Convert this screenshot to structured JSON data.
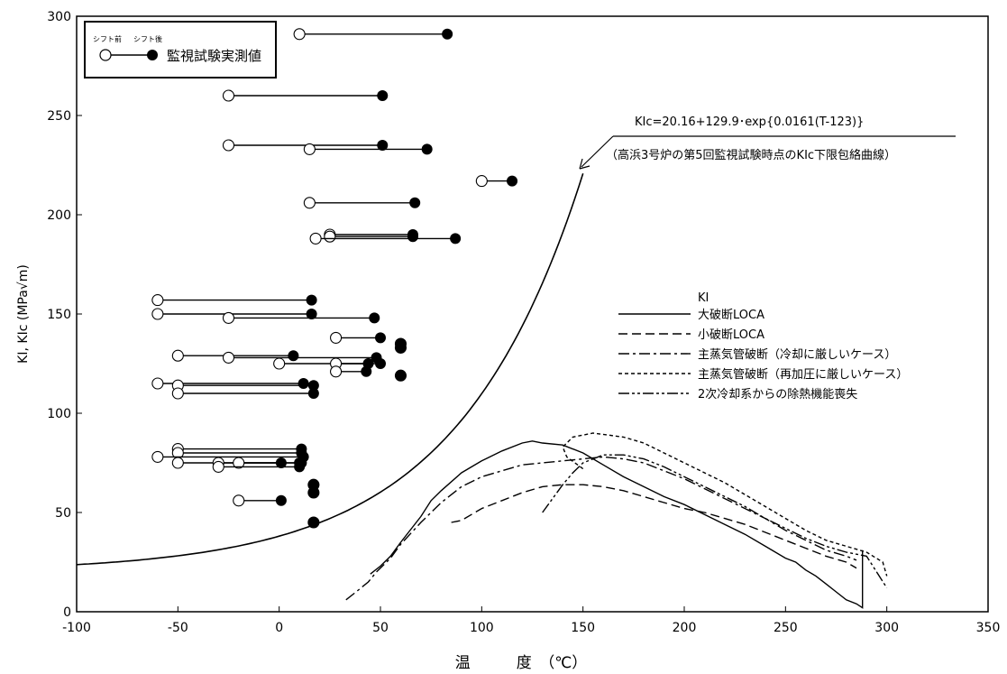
{
  "chart_data": {
    "type": "line",
    "title": "",
    "xlabel": "温　　　度　（℃）",
    "ylabel": "KI, KIc (MPa√m)",
    "xlim": [
      -100,
      350
    ],
    "ylim": [
      0,
      300
    ],
    "x_ticks": [
      -100,
      -50,
      0,
      50,
      100,
      150,
      200,
      250,
      300,
      350
    ],
    "y_ticks": [
      0,
      50,
      100,
      150,
      200,
      250,
      300
    ],
    "x_tick_labels": [
      "-100",
      "-50",
      "0",
      "50",
      "100",
      "150",
      "200",
      "250",
      "300",
      "350"
    ],
    "y_tick_labels": [
      "0",
      "50",
      "100",
      "150",
      "200",
      "250",
      "300"
    ],
    "grid": false,
    "marker_legend": {
      "before_label": "シフト前",
      "after_label": "シフト後",
      "label": "監視試験実測値",
      "placement": "top-left"
    },
    "kic_annotation": {
      "formula": "KIc=20.16+129.9･exp{0.0161(T-123)}",
      "note": "（高浜3号炉の第5回監視試験時点のKIc下限包絡曲線）"
    },
    "ki_legend": {
      "title": "KI",
      "placement": "right"
    },
    "kic_curve": {
      "coef_a": 20.16,
      "coef_b": 129.9,
      "coef_c": 0.0161,
      "coef_t0": 123,
      "x_range": [
        -100,
        150
      ]
    },
    "measurements": [
      {
        "before": 10,
        "after": 83,
        "k": 291
      },
      {
        "before": -25,
        "after": 51,
        "k": 260
      },
      {
        "before": -25,
        "after": 51,
        "k": 235
      },
      {
        "before": 15,
        "after": 73,
        "k": 233
      },
      {
        "before": 100,
        "after": 115,
        "k": 217
      },
      {
        "before": 15,
        "after": 67,
        "k": 206
      },
      {
        "before": 25,
        "after": 66,
        "k": 190
      },
      {
        "before": 25,
        "after": 66,
        "k": 189
      },
      {
        "before": 18,
        "after": 87,
        "k": 188
      },
      {
        "before": -60,
        "after": 16,
        "k": 157
      },
      {
        "before": -60,
        "after": 16,
        "k": 150
      },
      {
        "before": -25,
        "after": 47,
        "k": 148
      },
      {
        "before": 28,
        "after": 50,
        "k": 138
      },
      {
        "before": 60,
        "after": 60,
        "k": 135
      },
      {
        "before": 60,
        "after": 60,
        "k": 133
      },
      {
        "before": -50,
        "after": 7,
        "k": 129
      },
      {
        "before": -25,
        "after": 48,
        "k": 128
      },
      {
        "before": 0,
        "after": 50,
        "k": 125
      },
      {
        "before": 28,
        "after": 44,
        "k": 125
      },
      {
        "before": 28,
        "after": 43,
        "k": 121
      },
      {
        "before": 60,
        "after": 60,
        "k": 119
      },
      {
        "before": -60,
        "after": 12,
        "k": 115
      },
      {
        "before": -50,
        "after": 17,
        "k": 114
      },
      {
        "before": -50,
        "after": 17,
        "k": 110
      },
      {
        "before": -50,
        "after": 11,
        "k": 82
      },
      {
        "before": -50,
        "after": 11,
        "k": 80
      },
      {
        "before": -60,
        "after": 12,
        "k": 78
      },
      {
        "before": -50,
        "after": 1,
        "k": 75
      },
      {
        "before": -30,
        "after": 10,
        "k": 75
      },
      {
        "before": -20,
        "after": 11,
        "k": 75
      },
      {
        "before": -30,
        "after": 10,
        "k": 73
      },
      {
        "before": 17,
        "after": 17,
        "k": 64
      },
      {
        "before": 17,
        "after": 17,
        "k": 60
      },
      {
        "before": -20,
        "after": 1,
        "k": 56
      },
      {
        "before": 17,
        "after": 17,
        "k": 45
      }
    ],
    "series": [
      {
        "name": "大破断LOCA",
        "style": "solid",
        "x": [
          45,
          50,
          55,
          60,
          70,
          75,
          80,
          90,
          100,
          110,
          120,
          125,
          130,
          140,
          150,
          160,
          170,
          180,
          190,
          200,
          210,
          220,
          230,
          240,
          250,
          255,
          260,
          265,
          270,
          275,
          280,
          285,
          288,
          288
        ],
        "y": [
          19,
          23,
          28,
          35,
          48,
          56,
          61,
          70,
          76,
          81,
          85,
          86,
          85,
          84,
          80,
          74,
          68,
          63,
          58,
          54,
          49,
          44,
          39,
          33,
          27,
          25,
          21,
          18,
          14,
          10,
          6,
          4,
          2,
          31
        ]
      },
      {
        "name": "小破断LOCA",
        "style": "dashed",
        "x": [
          85,
          90,
          100,
          110,
          120,
          130,
          140,
          150,
          160,
          170,
          180,
          190,
          200,
          210,
          220,
          230,
          240,
          250,
          260,
          270,
          280,
          285
        ],
        "y": [
          45,
          46,
          52,
          56,
          60,
          63,
          64,
          64,
          63,
          61,
          58,
          55,
          52,
          50,
          47,
          44,
          40,
          36,
          32,
          28,
          25,
          22
        ]
      },
      {
        "name": "主蒸気管破断（冷却に厳しいケース）",
        "style": "dashdot",
        "x": [
          33,
          38,
          44,
          48,
          55,
          60,
          70,
          80,
          90,
          100,
          110,
          120,
          130,
          140,
          150,
          160,
          170,
          180,
          190,
          200,
          210,
          220,
          230,
          240,
          250,
          260,
          270,
          280,
          285
        ],
        "y": [
          6,
          10,
          15,
          20,
          27,
          34,
          45,
          55,
          63,
          68,
          71,
          74,
          75,
          76,
          77,
          78,
          77,
          75,
          71,
          67,
          62,
          57,
          52,
          47,
          41,
          36,
          31,
          28,
          26
        ]
      },
      {
        "name": "主蒸気管破断（再加圧に厳しいケース）",
        "style": "dotted",
        "x": [
          150,
          142,
          140,
          145,
          155,
          170,
          180,
          190,
          200,
          210,
          220,
          230,
          240,
          250,
          260,
          270,
          280,
          290,
          298,
          300
        ],
        "y": [
          72,
          78,
          83,
          88,
          90,
          88,
          85,
          80,
          75,
          70,
          65,
          59,
          53,
          47,
          41,
          36,
          33,
          30,
          25,
          18
        ]
      },
      {
        "name": "2次冷却系からの除熱機能喪失",
        "style": "dashdotdot",
        "x": [
          130,
          140,
          145,
          150,
          160,
          170,
          180,
          190,
          200,
          210,
          220,
          230,
          240,
          250,
          260,
          270,
          280,
          290,
          300
        ],
        "y": [
          50,
          64,
          70,
          75,
          79,
          79,
          77,
          73,
          68,
          63,
          58,
          53,
          47,
          42,
          37,
          33,
          30,
          28,
          12
        ]
      }
    ]
  }
}
